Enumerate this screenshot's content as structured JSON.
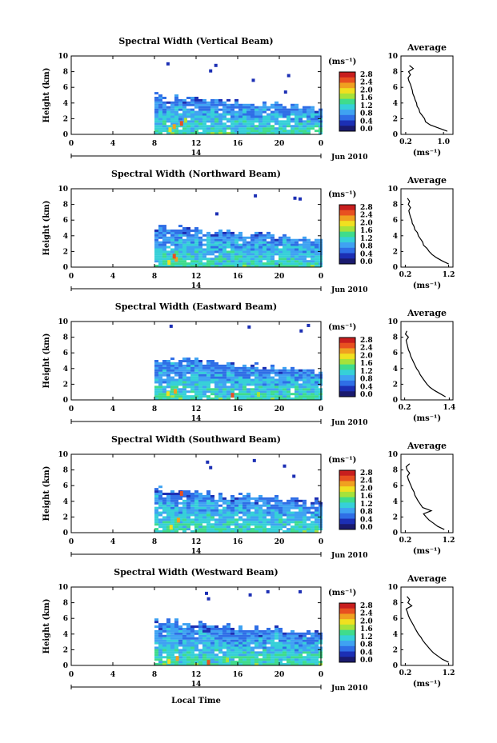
{
  "figure": {
    "xlabel": "Local Time",
    "date_label": "Jun 2010",
    "day_label": "14"
  },
  "colorbar": {
    "unit_label": "(ms⁻¹)",
    "tick_labels": [
      "0.0",
      "0.4",
      "0.8",
      "1.2",
      "1.6",
      "2.0",
      "2.4",
      "2.8"
    ],
    "colors": [
      "#1a1a6e",
      "#1c2fb4",
      "#2f6ee6",
      "#3fa2f2",
      "#36d0d8",
      "#3fdc8c",
      "#a6e23a",
      "#f0e020",
      "#f0a020",
      "#e85020",
      "#c81e1e"
    ]
  },
  "chart_data": [
    {
      "type": "heatmap",
      "title": "Spectral Width (Vertical Beam)",
      "ylabel": "Height (km)",
      "x_ticks": [
        "0",
        "4",
        "8",
        "12",
        "16",
        "20",
        "0"
      ],
      "y_ticks": [
        "0",
        "2",
        "4",
        "6",
        "8",
        "10"
      ],
      "xlim": [
        0,
        24
      ],
      "ylim": [
        0,
        10
      ],
      "data_start_hour": 8,
      "main_top_km": 4.8,
      "spots": [
        [
          9.5,
          0.4
        ],
        [
          9.9,
          0.8
        ],
        [
          10.6,
          1.2
        ],
        [
          11.0,
          1.6
        ]
      ],
      "upper_echoes": [
        [
          9.3,
          9.2
        ],
        [
          13.4,
          8.3
        ],
        [
          13.9,
          9.0
        ],
        [
          17.5,
          7.1
        ],
        [
          20.6,
          5.6
        ],
        [
          20.9,
          7.7
        ]
      ],
      "average": {
        "title": "Average",
        "xlabel": "(ms⁻¹)",
        "x_ticks": [
          "0.2",
          "1.0"
        ],
        "xlim": [
          0.1,
          1.2
        ],
        "height_km": [
          0.4,
          0.8,
          1.2,
          1.6,
          2.0,
          2.4,
          2.8,
          3.2,
          3.6,
          4.0,
          4.4,
          4.8,
          5.2,
          5.6,
          6.0,
          6.4,
          6.8,
          7.2,
          7.6,
          8.0,
          8.4,
          8.8
        ],
        "value_ms": [
          1.08,
          0.9,
          0.72,
          0.62,
          0.6,
          0.55,
          0.5,
          0.48,
          0.44,
          0.43,
          0.4,
          0.38,
          0.35,
          0.34,
          0.32,
          0.3,
          0.27,
          0.25,
          0.3,
          0.26,
          0.36,
          0.28
        ]
      }
    },
    {
      "type": "heatmap",
      "title": "Spectral Width (Northward Beam)",
      "ylabel": "Height (km)",
      "x_ticks": [
        "0",
        "4",
        "8",
        "12",
        "16",
        "20",
        "0"
      ],
      "y_ticks": [
        "0",
        "2",
        "4",
        "6",
        "8",
        "10"
      ],
      "xlim": [
        0,
        24
      ],
      "ylim": [
        0,
        10
      ],
      "data_start_hour": 8,
      "main_top_km": 5.0,
      "spots": [
        [
          9.4,
          0.4
        ],
        [
          10.1,
          0.8
        ],
        [
          9.9,
          1.2
        ]
      ],
      "upper_echoes": [
        [
          14.0,
          7.0
        ],
        [
          17.7,
          9.3
        ],
        [
          21.5,
          9.0
        ],
        [
          22.0,
          8.9
        ]
      ],
      "average": {
        "title": "Average",
        "xlabel": "(ms⁻¹)",
        "x_ticks": [
          "0.2",
          "1.2"
        ],
        "xlim": [
          0.1,
          1.3
        ],
        "height_km": [
          0.4,
          0.8,
          1.2,
          1.6,
          2.0,
          2.4,
          2.8,
          3.2,
          3.6,
          4.0,
          4.4,
          4.8,
          5.2,
          5.6,
          6.0,
          6.4,
          6.8,
          7.2,
          7.6,
          8.0,
          8.4,
          8.8
        ],
        "value_ms": [
          1.2,
          1.05,
          0.92,
          0.82,
          0.75,
          0.7,
          0.62,
          0.6,
          0.55,
          0.5,
          0.48,
          0.42,
          0.4,
          0.36,
          0.35,
          0.32,
          0.3,
          0.28,
          0.32,
          0.27,
          0.3,
          0.25
        ]
      }
    },
    {
      "type": "heatmap",
      "title": "Spectral Width (Eastward Beam)",
      "ylabel": "Height (km)",
      "x_ticks": [
        "0",
        "4",
        "8",
        "12",
        "16",
        "20",
        "0"
      ],
      "y_ticks": [
        "0",
        "2",
        "4",
        "6",
        "8",
        "10"
      ],
      "xlim": [
        0,
        24
      ],
      "ylim": [
        0,
        10
      ],
      "data_start_hour": 8,
      "main_top_km": 5.2,
      "spots": [
        [
          9.3,
          0.6
        ],
        [
          10.0,
          0.9
        ],
        [
          15.5,
          0.4
        ],
        [
          18.0,
          0.5
        ]
      ],
      "upper_echoes": [
        [
          9.6,
          9.6
        ],
        [
          17.1,
          9.5
        ],
        [
          22.1,
          9.0
        ],
        [
          22.8,
          9.7
        ]
      ],
      "average": {
        "title": "Average",
        "xlabel": "(ms⁻¹)",
        "x_ticks": [
          "0.2",
          "1.4"
        ],
        "xlim": [
          0.1,
          1.5
        ],
        "height_km": [
          0.4,
          0.8,
          1.2,
          1.6,
          2.0,
          2.4,
          2.8,
          3.2,
          3.6,
          4.0,
          4.4,
          4.8,
          5.2,
          5.6,
          6.0,
          6.4,
          6.8,
          7.2,
          7.6,
          8.0,
          8.4,
          8.8
        ],
        "value_ms": [
          1.3,
          1.15,
          1.0,
          0.88,
          0.8,
          0.74,
          0.68,
          0.62,
          0.58,
          0.52,
          0.48,
          0.44,
          0.4,
          0.36,
          0.34,
          0.3,
          0.28,
          0.26,
          0.24,
          0.3,
          0.22,
          0.26
        ]
      }
    },
    {
      "type": "heatmap",
      "title": "Spectral Width (Southward Beam)",
      "ylabel": "Height (km)",
      "x_ticks": [
        "0",
        "4",
        "8",
        "12",
        "16",
        "20",
        "0"
      ],
      "y_ticks": [
        "0",
        "2",
        "4",
        "6",
        "8",
        "10"
      ],
      "xlim": [
        0,
        24
      ],
      "ylim": [
        0,
        10
      ],
      "data_start_hour": 8,
      "main_top_km": 5.4,
      "spots": [
        [
          9.6,
          0.5
        ],
        [
          10.3,
          1.4
        ],
        [
          10.6,
          4.8
        ]
      ],
      "upper_echoes": [
        [
          13.1,
          9.2
        ],
        [
          13.4,
          8.5
        ],
        [
          17.6,
          9.4
        ],
        [
          20.5,
          8.7
        ],
        [
          21.4,
          7.4
        ]
      ],
      "average": {
        "title": "Average",
        "xlabel": "(ms⁻¹)",
        "x_ticks": [
          "0.2",
          "1.2"
        ],
        "xlim": [
          0.1,
          1.3
        ],
        "height_km": [
          0.4,
          0.8,
          1.2,
          1.6,
          2.0,
          2.4,
          2.8,
          3.2,
          3.6,
          4.0,
          4.4,
          4.8,
          5.2,
          5.6,
          6.0,
          6.4,
          6.8,
          7.2,
          7.6,
          8.0,
          8.4,
          8.8
        ],
        "value_ms": [
          1.1,
          0.95,
          0.85,
          0.75,
          0.68,
          0.62,
          0.8,
          0.6,
          0.55,
          0.5,
          0.46,
          0.42,
          0.4,
          0.36,
          0.33,
          0.3,
          0.27,
          0.25,
          0.3,
          0.24,
          0.22,
          0.3
        ]
      }
    },
    {
      "type": "heatmap",
      "title": "Spectral Width (Westward Beam)",
      "ylabel": "Height (km)",
      "x_ticks": [
        "0",
        "4",
        "8",
        "12",
        "16",
        "20",
        "0"
      ],
      "y_ticks": [
        "0",
        "2",
        "4",
        "6",
        "8",
        "10"
      ],
      "xlim": [
        0,
        24
      ],
      "ylim": [
        0,
        10
      ],
      "data_start_hour": 8,
      "main_top_km": 5.6,
      "spots": [
        [
          9.4,
          0.3
        ],
        [
          10.2,
          0.7
        ],
        [
          13.2,
          0.2
        ],
        [
          15.0,
          0.5
        ]
      ],
      "upper_echoes": [
        [
          13.0,
          9.4
        ],
        [
          13.2,
          8.7
        ],
        [
          17.2,
          9.2
        ],
        [
          18.9,
          9.6
        ],
        [
          22.0,
          9.6
        ]
      ],
      "average": {
        "title": "Average",
        "xlabel": "(ms⁻¹)",
        "x_ticks": [
          "0.2",
          "1.2"
        ],
        "xlim": [
          0.1,
          1.3
        ],
        "height_km": [
          0.4,
          0.8,
          1.2,
          1.6,
          2.0,
          2.4,
          2.8,
          3.2,
          3.6,
          4.0,
          4.4,
          4.8,
          5.2,
          5.6,
          6.0,
          6.4,
          6.8,
          7.2,
          7.6,
          8.0,
          8.4,
          8.8
        ],
        "value_ms": [
          1.2,
          1.05,
          0.95,
          0.85,
          0.78,
          0.72,
          0.66,
          0.6,
          0.56,
          0.5,
          0.46,
          0.42,
          0.38,
          0.34,
          0.3,
          0.27,
          0.25,
          0.22,
          0.35,
          0.26,
          0.3,
          0.24
        ]
      }
    }
  ]
}
